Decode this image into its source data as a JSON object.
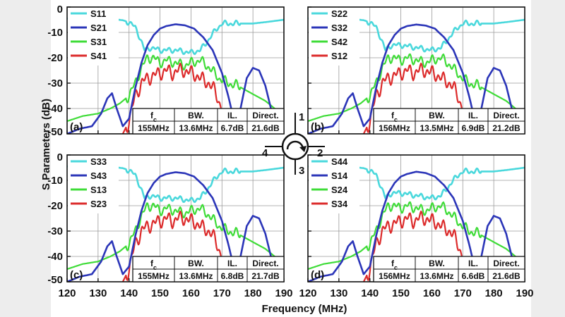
{
  "colors": {
    "S_reflection": "#4ad8dc",
    "S_transmission": "#2b35b8",
    "S_isolation": "#3fdc38",
    "S_leak": "#dc2b2b",
    "background_side": "#ededed"
  },
  "circulator": {
    "ports": [
      "1",
      "2",
      "3",
      "4"
    ],
    "icon": "circulator-clockwise-icon"
  },
  "chart_data": [
    {
      "type": "line",
      "panel": "(a)",
      "xlabel": "Frequency (MHz)",
      "ylabel": "S Parameters (dB)",
      "xlim": [
        120,
        190
      ],
      "ylim": [
        -50,
        0
      ],
      "xticks": [
        120,
        130,
        140,
        150,
        160,
        170,
        180,
        190
      ],
      "yticks": [
        0,
        -10,
        -20,
        -30,
        -40,
        -50
      ],
      "grid": true,
      "legend_position": "top-left",
      "series": [
        {
          "name": "S11",
          "role": "reflection",
          "x": [
            120,
            128,
            135,
            138,
            140,
            142,
            143.5,
            145,
            147,
            150,
            155,
            160,
            163,
            165,
            168,
            170,
            175,
            180,
            185,
            190
          ],
          "y": [
            -4.5,
            -4.5,
            -4.8,
            -5.2,
            -6,
            -8,
            -12,
            -17,
            -16,
            -17,
            -17,
            -18,
            -17,
            -14,
            -9,
            -6.5,
            -6.5,
            -6.5,
            -5.8,
            -5
          ]
        },
        {
          "name": "S21",
          "role": "transmission",
          "x": [
            120,
            124,
            128,
            131,
            133,
            134.5,
            136,
            138,
            140,
            142,
            144,
            146,
            148,
            150,
            152,
            155,
            158,
            161,
            164,
            167,
            170,
            172,
            174,
            176,
            178,
            180,
            182,
            184,
            186,
            188,
            190
          ],
          "y": [
            -50,
            -48,
            -47,
            -42,
            -36,
            -34,
            -40,
            -47,
            -44,
            -32,
            -22,
            -15,
            -11,
            -8.5,
            -7.5,
            -6.8,
            -7.2,
            -8.5,
            -12,
            -17,
            -26,
            -35,
            -45,
            -40,
            -28,
            -24,
            -25,
            -31,
            -41,
            -48,
            -50
          ]
        },
        {
          "name": "S31",
          "role": "isolation",
          "x": [
            120,
            125,
            130,
            134,
            137,
            140,
            142,
            144,
            146,
            148,
            150,
            152,
            155,
            158,
            160,
            163,
            166,
            169,
            172,
            175,
            178,
            181,
            184,
            187,
            190
          ],
          "y": [
            -45,
            -43,
            -42,
            -40,
            -38,
            -35,
            -30,
            -24,
            -20,
            -20,
            -22,
            -21,
            -22,
            -23,
            -22,
            -21,
            -24,
            -28,
            -30,
            -31,
            -33,
            -35,
            -37,
            -40,
            -42
          ]
        },
        {
          "name": "S41",
          "role": "leak",
          "x": [
            138,
            140,
            142,
            144,
            146,
            148,
            150,
            152,
            154,
            156,
            158,
            160,
            162,
            164,
            166,
            168,
            170,
            172
          ],
          "y": [
            -50,
            -45,
            -35,
            -30,
            -28,
            -27,
            -26,
            -25,
            -26,
            -25,
            -25,
            -26,
            -27,
            -29,
            -30,
            -34,
            -40,
            -50
          ]
        }
      ],
      "table": {
        "headers": [
          "f_c",
          "BW.",
          "IL.",
          "Direct."
        ],
        "values": [
          "155MHz",
          "13.6MHz",
          "6.7dB",
          "21.6dB"
        ]
      }
    },
    {
      "type": "line",
      "panel": "(b)",
      "xlabel": "Frequency (MHz)",
      "ylabel": "S Parameters (dB)",
      "xlim": [
        120,
        190
      ],
      "ylim": [
        -50,
        0
      ],
      "xticks": [
        120,
        130,
        140,
        150,
        160,
        170,
        180,
        190
      ],
      "yticks": [
        0,
        -10,
        -20,
        -30,
        -40,
        -50
      ],
      "grid": true,
      "legend_position": "top-left",
      "series": [
        {
          "name": "S22",
          "role": "reflection",
          "x": [
            120,
            128,
            135,
            138,
            140,
            142,
            143.5,
            145,
            147,
            150,
            155,
            160,
            163,
            165,
            168,
            170,
            175,
            180,
            185,
            190
          ],
          "y": [
            -4.5,
            -4.5,
            -4.8,
            -5.2,
            -6,
            -8,
            -12,
            -17,
            -15,
            -15,
            -16,
            -17,
            -16,
            -13,
            -8.5,
            -6.5,
            -6.5,
            -6.5,
            -5.8,
            -5
          ]
        },
        {
          "name": "S32",
          "role": "transmission",
          "x": [
            120,
            124,
            128,
            131,
            133,
            134.5,
            136,
            138,
            140,
            142,
            144,
            146,
            148,
            150,
            152,
            155,
            158,
            161,
            164,
            167,
            170,
            172,
            174,
            176,
            178,
            180,
            182,
            184,
            186,
            188,
            190
          ],
          "y": [
            -50,
            -48,
            -47,
            -42,
            -36,
            -34,
            -40,
            -47,
            -44,
            -32,
            -22,
            -15,
            -11,
            -8.5,
            -7.5,
            -6.9,
            -7.3,
            -8.5,
            -12,
            -17,
            -26,
            -35,
            -45,
            -40,
            -28,
            -24,
            -25,
            -31,
            -41,
            -48,
            -50
          ]
        },
        {
          "name": "S42",
          "role": "isolation",
          "x": [
            120,
            125,
            130,
            134,
            137,
            140,
            142,
            144,
            146,
            148,
            150,
            152,
            155,
            158,
            160,
            163,
            166,
            169,
            172,
            175,
            178,
            181,
            184,
            187,
            190
          ],
          "y": [
            -45,
            -43,
            -42,
            -40,
            -38,
            -35,
            -30,
            -24,
            -20,
            -20,
            -21,
            -20,
            -21,
            -22,
            -21,
            -20,
            -23,
            -27,
            -30,
            -31,
            -33,
            -35,
            -37,
            -40,
            -42
          ]
        },
        {
          "name": "S12",
          "role": "leak",
          "x": [
            138,
            140,
            142,
            144,
            146,
            148,
            150,
            152,
            154,
            156,
            158,
            160,
            162,
            164,
            166,
            168,
            170,
            172
          ],
          "y": [
            -50,
            -45,
            -35,
            -30,
            -28,
            -27,
            -26,
            -25,
            -26,
            -25,
            -25,
            -26,
            -27,
            -29,
            -30,
            -34,
            -40,
            -50
          ]
        }
      ],
      "table": {
        "headers": [
          "f_c",
          "BW.",
          "IL.",
          "Direct."
        ],
        "values": [
          "156MHz",
          "13.5MHz",
          "6.9dB",
          "21.2dB"
        ]
      }
    },
    {
      "type": "line",
      "panel": "(c)",
      "xlabel": "Frequency (MHz)",
      "ylabel": "S Parameters (dB)",
      "xlim": [
        120,
        190
      ],
      "ylim": [
        -50,
        0
      ],
      "xticks": [
        120,
        130,
        140,
        150,
        160,
        170,
        180,
        190
      ],
      "yticks": [
        0,
        -10,
        -20,
        -30,
        -40,
        -50
      ],
      "grid": true,
      "legend_position": "top-left",
      "series": [
        {
          "name": "S33",
          "role": "reflection",
          "x": [
            120,
            128,
            135,
            138,
            140,
            142,
            143.5,
            145,
            147,
            150,
            155,
            160,
            163,
            165,
            168,
            170,
            175,
            180,
            185,
            190
          ],
          "y": [
            -4.5,
            -4.5,
            -4.8,
            -5.2,
            -6,
            -8,
            -12,
            -17,
            -16,
            -17,
            -17,
            -18,
            -17,
            -14,
            -9,
            -6.5,
            -6.5,
            -6.5,
            -5.8,
            -5
          ]
        },
        {
          "name": "S43",
          "role": "transmission",
          "x": [
            120,
            124,
            128,
            131,
            133,
            134.5,
            136,
            138,
            140,
            142,
            144,
            146,
            148,
            150,
            152,
            155,
            158,
            161,
            164,
            167,
            170,
            172,
            174,
            176,
            178,
            180,
            182,
            184,
            186,
            188,
            190
          ],
          "y": [
            -50,
            -48,
            -47,
            -42,
            -36,
            -34,
            -40,
            -47,
            -44,
            -32,
            -22,
            -15,
            -11,
            -8.5,
            -7.5,
            -6.8,
            -7.2,
            -8.5,
            -12,
            -17,
            -26,
            -35,
            -45,
            -40,
            -28,
            -24,
            -25,
            -31,
            -41,
            -48,
            -50
          ]
        },
        {
          "name": "S13",
          "role": "isolation",
          "x": [
            120,
            125,
            130,
            134,
            137,
            140,
            142,
            144,
            146,
            148,
            150,
            152,
            155,
            158,
            160,
            163,
            166,
            169,
            172,
            175,
            178,
            181,
            184,
            187,
            190
          ],
          "y": [
            -45,
            -43,
            -42,
            -40,
            -38,
            -35,
            -30,
            -24,
            -20,
            -20,
            -22,
            -21,
            -22,
            -23,
            -22,
            -21,
            -24,
            -28,
            -30,
            -31,
            -33,
            -35,
            -37,
            -40,
            -42
          ]
        },
        {
          "name": "S23",
          "role": "leak",
          "x": [
            138,
            140,
            142,
            144,
            146,
            148,
            150,
            152,
            154,
            156,
            158,
            160,
            162,
            164,
            166,
            168,
            170,
            172
          ],
          "y": [
            -50,
            -45,
            -35,
            -30,
            -28,
            -27,
            -26,
            -25,
            -26,
            -25,
            -25,
            -26,
            -27,
            -29,
            -30,
            -34,
            -40,
            -50
          ]
        }
      ],
      "table": {
        "headers": [
          "f_c",
          "BW.",
          "IL.",
          "Direct."
        ],
        "values": [
          "155MHz",
          "13.6MHz",
          "6.8dB",
          "21.7dB"
        ]
      }
    },
    {
      "type": "line",
      "panel": "(d)",
      "xlabel": "Frequency (MHz)",
      "ylabel": "S Parameters (dB)",
      "xlim": [
        120,
        190
      ],
      "ylim": [
        -50,
        0
      ],
      "xticks": [
        120,
        130,
        140,
        150,
        160,
        170,
        180,
        190
      ],
      "yticks": [
        0,
        -10,
        -20,
        -30,
        -40,
        -50
      ],
      "grid": true,
      "legend_position": "top-left",
      "series": [
        {
          "name": "S44",
          "role": "reflection",
          "x": [
            120,
            128,
            135,
            138,
            140,
            142,
            143.5,
            145,
            147,
            150,
            155,
            160,
            163,
            165,
            168,
            170,
            175,
            180,
            185,
            190
          ],
          "y": [
            -4.5,
            -4.5,
            -4.8,
            -5.2,
            -6,
            -8,
            -12,
            -17,
            -15,
            -15,
            -16,
            -17,
            -16,
            -13,
            -8.5,
            -6.5,
            -6.5,
            -6.5,
            -5.8,
            -5
          ]
        },
        {
          "name": "S14",
          "role": "transmission",
          "x": [
            120,
            124,
            128,
            131,
            133,
            134.5,
            136,
            138,
            140,
            142,
            144,
            146,
            148,
            150,
            152,
            155,
            158,
            161,
            164,
            167,
            170,
            172,
            174,
            176,
            178,
            180,
            182,
            184,
            186,
            188,
            190
          ],
          "y": [
            -50,
            -48,
            -47,
            -42,
            -36,
            -34,
            -40,
            -47,
            -44,
            -32,
            -22,
            -15,
            -11,
            -8.5,
            -7.5,
            -6.6,
            -7.1,
            -8.5,
            -12,
            -17,
            -26,
            -35,
            -45,
            -40,
            -28,
            -24,
            -25,
            -31,
            -41,
            -48,
            -50
          ]
        },
        {
          "name": "S24",
          "role": "isolation",
          "x": [
            120,
            125,
            130,
            134,
            137,
            140,
            142,
            144,
            146,
            148,
            150,
            152,
            155,
            158,
            160,
            163,
            166,
            169,
            172,
            175,
            178,
            181,
            184,
            187,
            190
          ],
          "y": [
            -45,
            -43,
            -42,
            -40,
            -38,
            -35,
            -30,
            -24,
            -20,
            -20,
            -21,
            -20,
            -21,
            -22,
            -21,
            -20,
            -23,
            -27,
            -30,
            -31,
            -33,
            -35,
            -37,
            -40,
            -42
          ]
        },
        {
          "name": "S34",
          "role": "leak",
          "x": [
            138,
            140,
            142,
            144,
            146,
            148,
            150,
            152,
            154,
            156,
            158,
            160,
            162,
            164,
            166,
            168,
            170,
            172
          ],
          "y": [
            -50,
            -45,
            -35,
            -30,
            -28,
            -27,
            -26,
            -25,
            -26,
            -25,
            -25,
            -26,
            -27,
            -29,
            -30,
            -34,
            -40,
            -50
          ]
        }
      ],
      "table": {
        "headers": [
          "f_c",
          "BW.",
          "IL.",
          "Direct."
        ],
        "values": [
          "156MHz",
          "13.6MHz",
          "6.6dB",
          "21.6dB"
        ]
      }
    }
  ],
  "axes_text": {
    "xlabel": "Frequency (MHz)",
    "ylabel": "S Parameters (dB)"
  }
}
